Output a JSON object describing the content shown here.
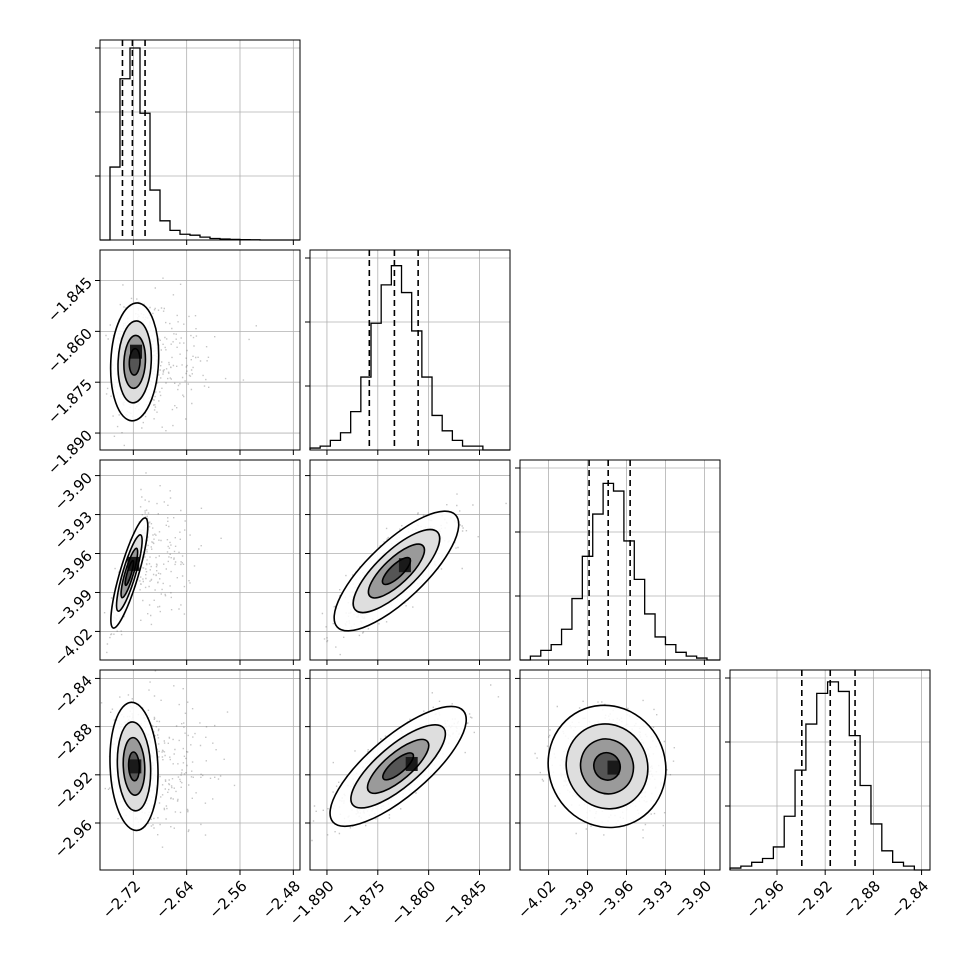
{
  "colors": {
    "background": "#ffffff",
    "axes": "#000000",
    "grid": "#b0b0b0",
    "scatter": "#5a5a5a",
    "histogram": "#000000"
  },
  "chart_data": {
    "type": "corner",
    "grid": true,
    "parameters": [
      {
        "range": [
          -2.77,
          -2.47
        ],
        "ticks": [
          -2.72,
          -2.64,
          -2.56,
          -2.48
        ],
        "tick_labels": [
          "−2.72",
          "−2.64",
          "−2.56",
          "−2.48"
        ]
      },
      {
        "range": [
          -1.895,
          -1.836
        ],
        "ticks": [
          -1.89,
          -1.875,
          -1.86,
          -1.845
        ],
        "tick_labels": [
          "−1.890",
          "−1.875",
          "−1.860",
          "−1.845"
        ]
      },
      {
        "range": [
          -4.042,
          -3.888
        ],
        "ticks": [
          -4.02,
          -3.99,
          -3.96,
          -3.93,
          -3.9
        ],
        "tick_labels": [
          "−4.02",
          "−3.99",
          "−3.96",
          "−3.93",
          "−3.90"
        ]
      },
      {
        "range": [
          -2.999,
          -2.833
        ],
        "ticks": [
          -2.96,
          -2.92,
          -2.88,
          -2.84
        ],
        "tick_labels": [
          "−2.96",
          "−2.92",
          "−2.88",
          "−2.84"
        ]
      }
    ],
    "histograms": [
      {
        "quantiles": [
          -2.7363,
          -2.7214,
          -2.7024
        ],
        "bins": [
          [
            -2.77,
            -2.755,
            0
          ],
          [
            -2.755,
            -2.74,
            0.38
          ],
          [
            -2.74,
            -2.725,
            0.84
          ],
          [
            -2.725,
            -2.71,
            1.0
          ],
          [
            -2.71,
            -2.695,
            0.66
          ],
          [
            -2.695,
            -2.68,
            0.26
          ],
          [
            -2.68,
            -2.665,
            0.1
          ],
          [
            -2.665,
            -2.65,
            0.05
          ],
          [
            -2.65,
            -2.635,
            0.03
          ],
          [
            -2.635,
            -2.62,
            0.025
          ],
          [
            -2.62,
            -2.605,
            0.015
          ],
          [
            -2.605,
            -2.59,
            0.008
          ],
          [
            -2.59,
            -2.575,
            0.005
          ],
          [
            -2.575,
            -2.56,
            0.003
          ],
          [
            -2.56,
            -2.545,
            0.002
          ],
          [
            -2.545,
            -2.53,
            0.001
          ],
          [
            -2.53,
            -2.47,
            0
          ]
        ]
      },
      {
        "quantiles": [
          -1.8775,
          -1.8701,
          -1.8631
        ],
        "bins": [
          [
            -1.895,
            -1.892,
            0.01
          ],
          [
            -1.892,
            -1.889,
            0.02
          ],
          [
            -1.889,
            -1.886,
            0.05
          ],
          [
            -1.886,
            -1.883,
            0.09
          ],
          [
            -1.883,
            -1.88,
            0.2
          ],
          [
            -1.88,
            -1.877,
            0.38
          ],
          [
            -1.877,
            -1.874,
            0.66
          ],
          [
            -1.874,
            -1.871,
            0.86
          ],
          [
            -1.871,
            -1.868,
            0.96
          ],
          [
            -1.868,
            -1.865,
            0.82
          ],
          [
            -1.865,
            -1.862,
            0.62
          ],
          [
            -1.862,
            -1.859,
            0.38
          ],
          [
            -1.859,
            -1.856,
            0.18
          ],
          [
            -1.856,
            -1.853,
            0.1
          ],
          [
            -1.853,
            -1.85,
            0.05
          ],
          [
            -1.85,
            -1.847,
            0.02
          ],
          [
            -1.847,
            -1.844,
            0.02
          ],
          [
            -1.844,
            -1.836,
            0
          ]
        ]
      },
      {
        "quantiles": [
          -3.9888,
          -3.9741,
          -3.9572
        ],
        "bins": [
          [
            -4.042,
            -4.034,
            0.0
          ],
          [
            -4.034,
            -4.026,
            0.02
          ],
          [
            -4.026,
            -4.018,
            0.05
          ],
          [
            -4.018,
            -4.01,
            0.08
          ],
          [
            -4.01,
            -4.002,
            0.16
          ],
          [
            -4.002,
            -3.994,
            0.32
          ],
          [
            -3.994,
            -3.986,
            0.54
          ],
          [
            -3.986,
            -3.978,
            0.76
          ],
          [
            -3.978,
            -3.97,
            0.92
          ],
          [
            -3.97,
            -3.962,
            0.88
          ],
          [
            -3.962,
            -3.954,
            0.62
          ],
          [
            -3.954,
            -3.946,
            0.42
          ],
          [
            -3.946,
            -3.938,
            0.24
          ],
          [
            -3.938,
            -3.93,
            0.12
          ],
          [
            -3.93,
            -3.922,
            0.08
          ],
          [
            -3.922,
            -3.914,
            0.04
          ],
          [
            -3.914,
            -3.906,
            0.02
          ],
          [
            -3.906,
            -3.898,
            0.01
          ],
          [
            -3.898,
            -3.888,
            0
          ]
        ]
      },
      {
        "quantiles": [
          -2.9394,
          -2.9158,
          -2.8952
        ],
        "bins": [
          [
            -2.999,
            -2.99,
            0.01
          ],
          [
            -2.99,
            -2.981,
            0.02
          ],
          [
            -2.981,
            -2.972,
            0.04
          ],
          [
            -2.972,
            -2.963,
            0.06
          ],
          [
            -2.963,
            -2.954,
            0.12
          ],
          [
            -2.954,
            -2.945,
            0.28
          ],
          [
            -2.945,
            -2.936,
            0.52
          ],
          [
            -2.936,
            -2.927,
            0.76
          ],
          [
            -2.927,
            -2.918,
            0.92
          ],
          [
            -2.918,
            -2.909,
            0.98
          ],
          [
            -2.909,
            -2.9,
            0.93
          ],
          [
            -2.9,
            -2.891,
            0.7
          ],
          [
            -2.891,
            -2.882,
            0.44
          ],
          [
            -2.882,
            -2.873,
            0.24
          ],
          [
            -2.873,
            -2.864,
            0.1
          ],
          [
            -2.864,
            -2.855,
            0.04
          ],
          [
            -2.855,
            -2.846,
            0.02
          ],
          [
            -2.846,
            -2.833,
            0
          ]
        ]
      }
    ],
    "pairs": [
      {
        "x": 0,
        "y": 1,
        "mean": [
          -2.718,
          -1.869
        ],
        "sd": [
          0.0147,
          0.0071
        ],
        "rho": 0.1,
        "hotspot": [
          -2.716,
          -1.866
        ]
      },
      {
        "x": 0,
        "y": 2,
        "mean": [
          -2.726,
          -3.975
        ],
        "sd": [
          0.0113,
          0.0173
        ],
        "rho": 0.85,
        "hotspot": [
          -2.72,
          -3.968
        ]
      },
      {
        "x": 1,
        "y": 2,
        "mean": [
          -1.8695,
          -3.9735
        ],
        "sd": [
          0.0075,
          0.0188
        ],
        "rho": 0.78,
        "hotspot": [
          -1.867,
          -3.969
        ]
      },
      {
        "x": 0,
        "y": 3,
        "mean": [
          -2.719,
          -2.913
        ],
        "sd": [
          0.0147,
          0.0217
        ],
        "rho": -0.1,
        "hotspot": [
          -2.717,
          -2.913
        ]
      },
      {
        "x": 1,
        "y": 3,
        "mean": [
          -1.869,
          -2.913
        ],
        "sd": [
          0.0082,
          0.0203
        ],
        "rho": 0.78,
        "hotspot": [
          -1.865,
          -2.911
        ]
      },
      {
        "x": 2,
        "y": 3,
        "mean": [
          -3.975,
          -2.913
        ],
        "sd": [
          0.0185,
          0.0207
        ],
        "rho": -0.05,
        "hotspot": [
          -3.97,
          -2.914
        ]
      }
    ]
  }
}
